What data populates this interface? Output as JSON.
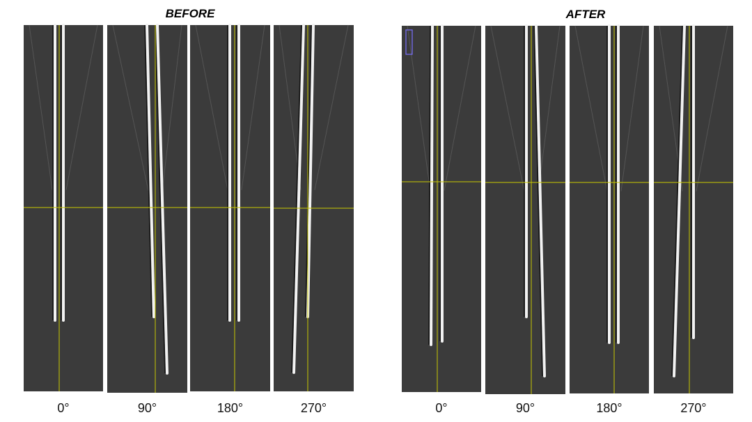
{
  "before": {
    "title": "BEFORE",
    "labels": [
      "0°",
      "90°",
      "180°",
      "270°"
    ]
  },
  "after": {
    "title": "AFTER",
    "labels": [
      "0°",
      "90°",
      "180°",
      "270°"
    ]
  }
}
